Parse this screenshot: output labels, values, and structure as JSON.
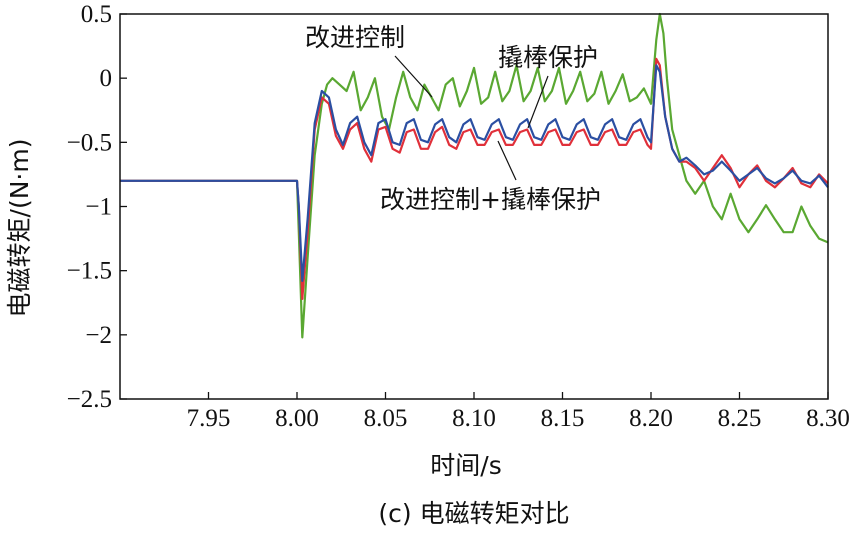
{
  "chart_data": {
    "type": "line",
    "title": "",
    "caption": "(c) 电磁转矩对比",
    "xlabel": "时间/s",
    "ylabel": "电磁转矩/(N·m)",
    "xlim": [
      7.9,
      8.3
    ],
    "ylim": [
      -2.5,
      0.5
    ],
    "x_ticks": [
      7.95,
      8.0,
      8.05,
      8.1,
      8.15,
      8.2,
      8.25,
      8.3
    ],
    "x_tick_labels": [
      "7.95",
      "8.00",
      "8.05",
      "8.10",
      "8.15",
      "8.20",
      "8.25",
      "8.30"
    ],
    "y_ticks": [
      0.5,
      0,
      -0.5,
      -1,
      -1.5,
      -2,
      -2.5
    ],
    "y_tick_labels": [
      "0.5",
      "0",
      "−0.5",
      "−1",
      "−1.5",
      "−2",
      "−2.5"
    ],
    "grid": false,
    "legend": "none",
    "annotations": [
      {
        "text": "改进控制",
        "series": "改进控制"
      },
      {
        "text": "撬棒保护",
        "series": "撬棒保护"
      },
      {
        "text": "改进控制+撬棒保护",
        "series": "改进控制+撬棒保护"
      }
    ],
    "series": [
      {
        "name": "改进控制",
        "color": "#5aa832",
        "x": [
          7.9,
          8.0,
          8.001,
          8.003,
          8.006,
          8.01,
          8.014,
          8.017,
          8.02,
          8.024,
          8.028,
          8.032,
          8.036,
          8.04,
          8.044,
          8.048,
          8.052,
          8.056,
          8.06,
          8.064,
          8.068,
          8.072,
          8.076,
          8.08,
          8.084,
          8.088,
          8.092,
          8.096,
          8.1,
          8.104,
          8.108,
          8.112,
          8.116,
          8.12,
          8.124,
          8.128,
          8.132,
          8.136,
          8.14,
          8.144,
          8.148,
          8.152,
          8.156,
          8.16,
          8.164,
          8.168,
          8.172,
          8.176,
          8.18,
          8.184,
          8.188,
          8.192,
          8.196,
          8.2,
          8.203,
          8.205,
          8.207,
          8.209,
          8.212,
          8.216,
          8.22,
          8.225,
          8.23,
          8.235,
          8.24,
          8.245,
          8.25,
          8.255,
          8.26,
          8.265,
          8.27,
          8.275,
          8.28,
          8.285,
          8.29,
          8.295,
          8.3
        ],
        "y": [
          -0.8,
          -0.8,
          -1.2,
          -2.02,
          -1.4,
          -0.6,
          -0.2,
          -0.05,
          0.0,
          -0.05,
          -0.1,
          0.05,
          -0.25,
          -0.15,
          0.0,
          -0.3,
          -0.4,
          -0.15,
          0.05,
          -0.15,
          -0.25,
          -0.05,
          -0.15,
          -0.25,
          -0.05,
          0.0,
          -0.22,
          -0.1,
          0.08,
          -0.2,
          -0.15,
          0.05,
          -0.18,
          -0.1,
          0.1,
          -0.18,
          -0.1,
          0.08,
          -0.18,
          -0.1,
          0.08,
          -0.2,
          -0.1,
          0.05,
          -0.18,
          -0.12,
          0.05,
          -0.2,
          -0.1,
          0.03,
          -0.18,
          -0.15,
          -0.08,
          -0.2,
          0.3,
          0.5,
          0.35,
          0.0,
          -0.4,
          -0.6,
          -0.8,
          -0.9,
          -0.8,
          -1.0,
          -1.1,
          -0.9,
          -1.1,
          -1.2,
          -1.1,
          -0.99,
          -1.1,
          -1.2,
          -1.2,
          -1.0,
          -1.15,
          -1.25,
          -1.28
        ]
      },
      {
        "name": "撬棒保护",
        "color": "#e0303a",
        "x": [
          7.9,
          8.0,
          8.001,
          8.003,
          8.006,
          8.01,
          8.014,
          8.018,
          8.022,
          8.026,
          8.03,
          8.034,
          8.038,
          8.042,
          8.046,
          8.05,
          8.054,
          8.058,
          8.062,
          8.066,
          8.07,
          8.074,
          8.078,
          8.082,
          8.086,
          8.09,
          8.094,
          8.098,
          8.102,
          8.106,
          8.11,
          8.114,
          8.118,
          8.122,
          8.126,
          8.13,
          8.134,
          8.138,
          8.142,
          8.146,
          8.15,
          8.154,
          8.158,
          8.162,
          8.166,
          8.17,
          8.174,
          8.178,
          8.182,
          8.186,
          8.19,
          8.194,
          8.198,
          8.2,
          8.203,
          8.205,
          8.208,
          8.212,
          8.216,
          8.22,
          8.225,
          8.23,
          8.235,
          8.24,
          8.245,
          8.25,
          8.255,
          8.26,
          8.265,
          8.27,
          8.275,
          8.28,
          8.285,
          8.29,
          8.295,
          8.3
        ],
        "y": [
          -0.8,
          -0.8,
          -1.0,
          -1.72,
          -1.2,
          -0.4,
          -0.15,
          -0.2,
          -0.45,
          -0.55,
          -0.4,
          -0.35,
          -0.55,
          -0.65,
          -0.4,
          -0.38,
          -0.55,
          -0.58,
          -0.42,
          -0.4,
          -0.55,
          -0.55,
          -0.42,
          -0.38,
          -0.52,
          -0.55,
          -0.42,
          -0.4,
          -0.52,
          -0.52,
          -0.42,
          -0.4,
          -0.52,
          -0.52,
          -0.42,
          -0.4,
          -0.52,
          -0.52,
          -0.42,
          -0.4,
          -0.52,
          -0.52,
          -0.42,
          -0.4,
          -0.52,
          -0.52,
          -0.42,
          -0.4,
          -0.52,
          -0.52,
          -0.42,
          -0.4,
          -0.52,
          -0.55,
          0.15,
          0.1,
          -0.3,
          -0.55,
          -0.65,
          -0.65,
          -0.7,
          -0.8,
          -0.7,
          -0.6,
          -0.7,
          -0.85,
          -0.75,
          -0.68,
          -0.8,
          -0.85,
          -0.78,
          -0.7,
          -0.82,
          -0.85,
          -0.75,
          -0.82
        ]
      },
      {
        "name": "改进控制+撬棒保护",
        "color": "#2b4fa2",
        "x": [
          7.9,
          8.0,
          8.001,
          8.003,
          8.006,
          8.01,
          8.014,
          8.018,
          8.022,
          8.026,
          8.03,
          8.034,
          8.038,
          8.042,
          8.046,
          8.05,
          8.054,
          8.058,
          8.062,
          8.066,
          8.07,
          8.074,
          8.078,
          8.082,
          8.086,
          8.09,
          8.094,
          8.098,
          8.102,
          8.106,
          8.11,
          8.114,
          8.118,
          8.122,
          8.126,
          8.13,
          8.134,
          8.138,
          8.142,
          8.146,
          8.15,
          8.154,
          8.158,
          8.162,
          8.166,
          8.17,
          8.174,
          8.178,
          8.182,
          8.186,
          8.19,
          8.194,
          8.198,
          8.2,
          8.203,
          8.205,
          8.208,
          8.212,
          8.216,
          8.22,
          8.225,
          8.23,
          8.235,
          8.24,
          8.245,
          8.25,
          8.255,
          8.26,
          8.265,
          8.27,
          8.275,
          8.28,
          8.285,
          8.29,
          8.295,
          8.3
        ],
        "y": [
          -0.8,
          -0.8,
          -1.0,
          -1.58,
          -1.1,
          -0.35,
          -0.1,
          -0.15,
          -0.4,
          -0.52,
          -0.35,
          -0.3,
          -0.5,
          -0.6,
          -0.35,
          -0.32,
          -0.5,
          -0.52,
          -0.35,
          -0.32,
          -0.48,
          -0.5,
          -0.36,
          -0.32,
          -0.46,
          -0.5,
          -0.36,
          -0.32,
          -0.46,
          -0.48,
          -0.36,
          -0.32,
          -0.46,
          -0.48,
          -0.36,
          -0.32,
          -0.46,
          -0.48,
          -0.36,
          -0.32,
          -0.46,
          -0.48,
          -0.36,
          -0.32,
          -0.46,
          -0.48,
          -0.36,
          -0.32,
          -0.46,
          -0.48,
          -0.36,
          -0.32,
          -0.46,
          -0.5,
          0.1,
          0.05,
          -0.3,
          -0.55,
          -0.65,
          -0.62,
          -0.68,
          -0.75,
          -0.72,
          -0.65,
          -0.72,
          -0.8,
          -0.75,
          -0.7,
          -0.78,
          -0.82,
          -0.78,
          -0.72,
          -0.8,
          -0.82,
          -0.76,
          -0.85
        ]
      }
    ]
  }
}
